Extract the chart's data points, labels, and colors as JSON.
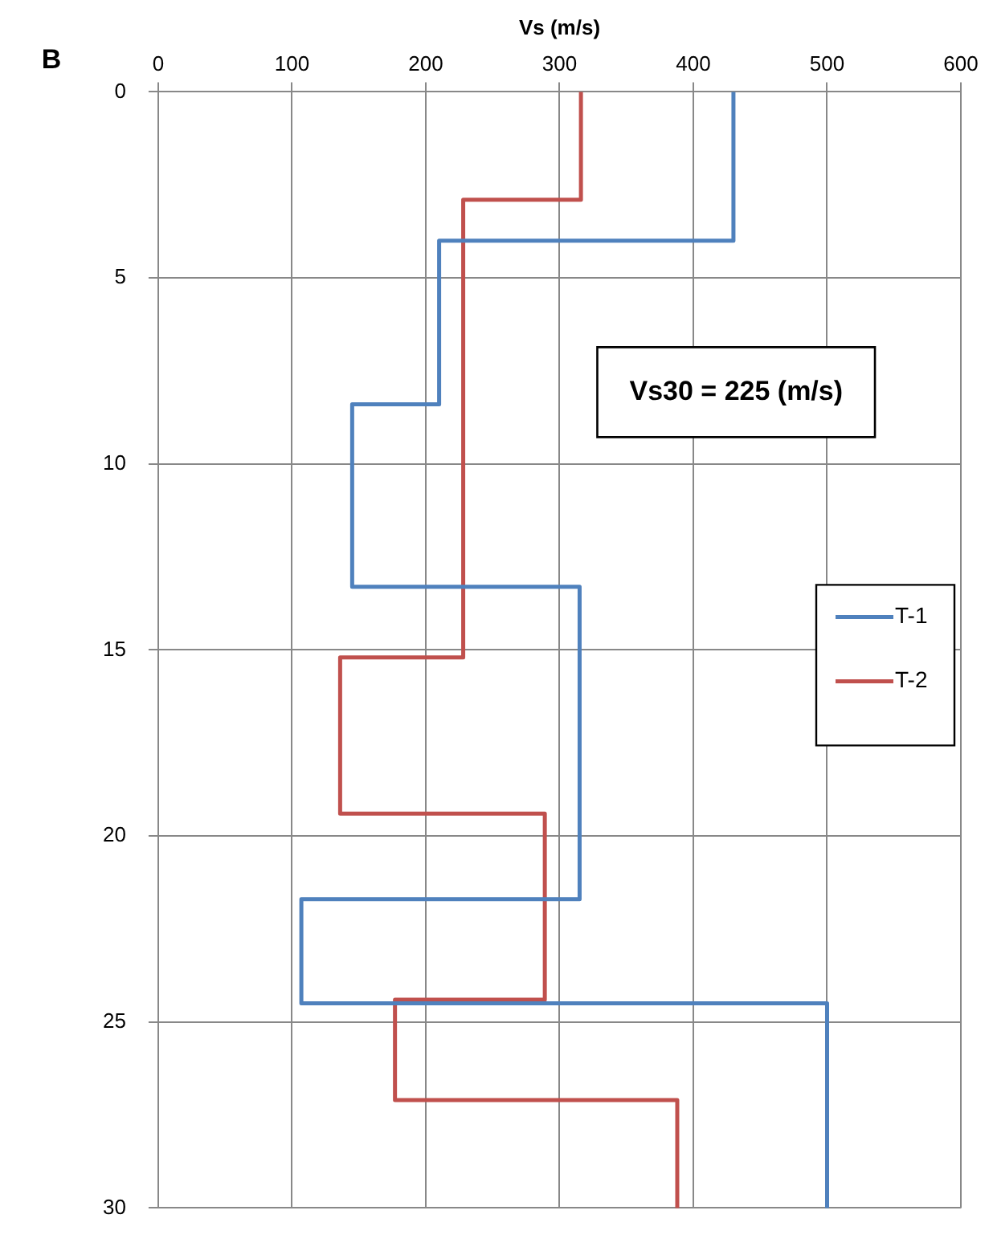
{
  "chart_data": {
    "type": "line",
    "xlabel": "Vs (m/s)",
    "xlim": [
      0,
      600
    ],
    "xticks": [
      0,
      100,
      200,
      300,
      400,
      500,
      600
    ],
    "ylim": [
      30,
      0
    ],
    "yticks": [
      0,
      5,
      10,
      15,
      20,
      25,
      30
    ],
    "grid": true,
    "legend": "right",
    "marker": "none",
    "line_style": "solid",
    "annotations": [
      "B",
      "Vs30 = 225 (m/s)"
    ],
    "series": [
      {
        "name": "T-1",
        "color": "#4f81bd",
        "x": [
          430,
          430,
          210,
          210,
          145,
          145,
          315,
          315,
          107,
          107,
          500,
          500
        ],
        "values": [
          0,
          4,
          4,
          8.4,
          8.4,
          13.3,
          13.3,
          21.7,
          21.7,
          24.5,
          24.5,
          30
        ]
      },
      {
        "name": "T-2",
        "color": "#c0504d",
        "x": [
          316,
          316,
          228,
          228,
          136,
          136,
          289,
          289,
          177,
          177,
          388,
          388
        ],
        "values": [
          0,
          2.9,
          2.9,
          15.2,
          15.2,
          19.4,
          19.4,
          24.4,
          24.4,
          27.1,
          27.1,
          30
        ]
      }
    ]
  }
}
